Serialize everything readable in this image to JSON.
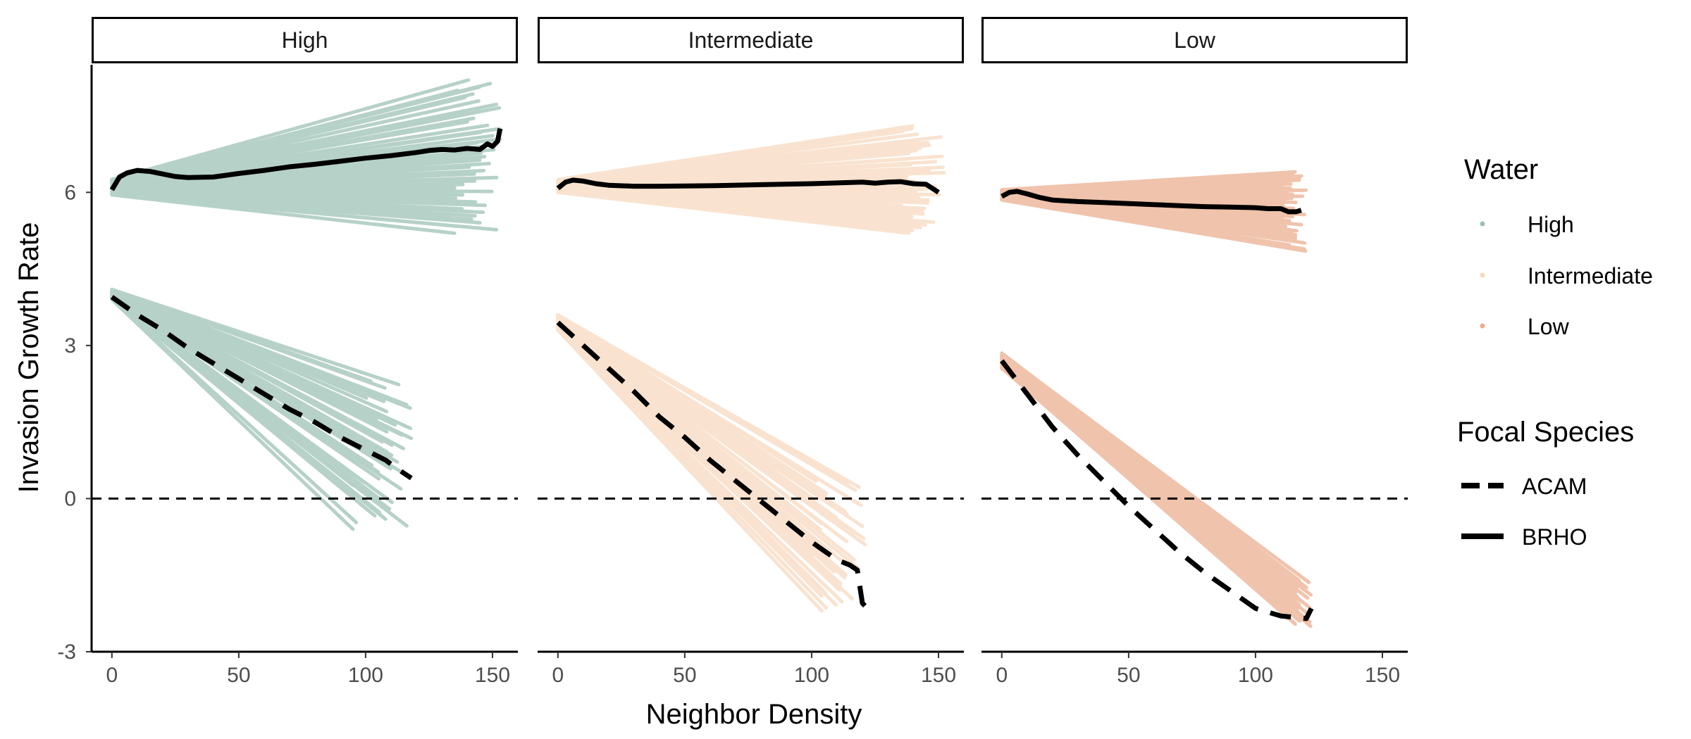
{
  "chart_data": {
    "type": "line",
    "xlabel": "Neighbor Density",
    "ylabel": "Invasion Growth Rate",
    "xlim": [
      -8,
      160
    ],
    "ylim": [
      -3,
      8.5
    ],
    "x_ticks": [
      0,
      50,
      100,
      150
    ],
    "y_ticks": [
      -3,
      0,
      3,
      6
    ],
    "reference_line": {
      "y": 0,
      "style": "dashed"
    },
    "colors": {
      "High": "#6fa593",
      "Intermediate": "#f4c9a3",
      "Low": "#e2895c",
      "line": "#000000"
    },
    "legend": {
      "placement": "right",
      "water": {
        "title": "Water",
        "items": [
          "High",
          "Intermediate",
          "Low"
        ]
      },
      "species": {
        "title": "Focal Species",
        "items": [
          {
            "label": "ACAM",
            "style": "dashed"
          },
          {
            "label": "BRHO",
            "style": "solid"
          }
        ]
      }
    },
    "panels": [
      {
        "label": "High",
        "water": "High",
        "bands": [
          {
            "species": "BRHO",
            "start_x": 0,
            "start_y_min": 5.95,
            "start_y_max": 6.25,
            "end_x_min": 135,
            "end_x_max": 153,
            "end_y_min": 5.2,
            "end_y_max": 8.2,
            "n_lines": 45
          },
          {
            "species": "ACAM",
            "start_x": 0,
            "start_y_min": 3.9,
            "start_y_max": 4.1,
            "end_x_min": 95,
            "end_x_max": 118,
            "end_y_min": -0.6,
            "end_y_max": 2.3,
            "n_lines": 45
          }
        ],
        "series": [
          {
            "name": "BRHO",
            "style": "solid",
            "x": [
              0,
              3,
              6,
              10,
              15,
              20,
              25,
              30,
              40,
              50,
              60,
              70,
              80,
              90,
              100,
              110,
              120,
              125,
              130,
              135,
              140,
              145,
              148,
              150,
              152,
              153
            ],
            "y": [
              6.05,
              6.3,
              6.38,
              6.43,
              6.41,
              6.36,
              6.31,
              6.29,
              6.3,
              6.37,
              6.43,
              6.5,
              6.55,
              6.61,
              6.67,
              6.72,
              6.78,
              6.82,
              6.84,
              6.83,
              6.86,
              6.84,
              6.95,
              6.9,
              7.0,
              7.25
            ]
          },
          {
            "name": "ACAM",
            "style": "dashed",
            "x": [
              0,
              10,
              20,
              30,
              40,
              50,
              60,
              70,
              80,
              90,
              100,
              108,
              112,
              118
            ],
            "y": [
              3.95,
              3.6,
              3.3,
              2.95,
              2.65,
              2.35,
              2.05,
              1.75,
              1.5,
              1.2,
              0.95,
              0.75,
              0.6,
              0.4
            ]
          }
        ]
      },
      {
        "label": "Intermediate",
        "water": "Intermediate",
        "bands": [
          {
            "species": "BRHO",
            "start_x": 0,
            "start_y_min": 6.0,
            "start_y_max": 6.25,
            "end_x_min": 135,
            "end_x_max": 153,
            "end_y_min": 5.2,
            "end_y_max": 7.3,
            "n_lines": 40
          },
          {
            "species": "ACAM",
            "start_x": 0,
            "start_y_min": 3.3,
            "start_y_max": 3.6,
            "end_x_min": 100,
            "end_x_max": 122,
            "end_y_min": -2.2,
            "end_y_max": 0.4,
            "n_lines": 45
          }
        ],
        "series": [
          {
            "name": "BRHO",
            "style": "solid",
            "x": [
              0,
              3,
              6,
              10,
              15,
              20,
              30,
              40,
              60,
              80,
              100,
              120,
              125,
              130,
              135,
              140,
              145,
              150
            ],
            "y": [
              6.08,
              6.2,
              6.24,
              6.22,
              6.17,
              6.14,
              6.12,
              6.12,
              6.13,
              6.15,
              6.17,
              6.2,
              6.18,
              6.2,
              6.21,
              6.17,
              6.16,
              6.0
            ]
          },
          {
            "name": "ACAM",
            "style": "dashed",
            "x": [
              0,
              10,
              20,
              30,
              40,
              50,
              60,
              70,
              80,
              90,
              100,
              110,
              115,
              118,
              120,
              122
            ],
            "y": [
              3.45,
              3.0,
              2.55,
              2.1,
              1.6,
              1.2,
              0.75,
              0.35,
              -0.05,
              -0.45,
              -0.85,
              -1.2,
              -1.3,
              -1.4,
              -2.05,
              -2.15
            ]
          }
        ]
      },
      {
        "label": "Low",
        "water": "Low",
        "bands": [
          {
            "species": "BRHO",
            "start_x": 0,
            "start_y_min": 5.85,
            "start_y_max": 6.05,
            "end_x_min": 110,
            "end_x_max": 120,
            "end_y_min": 4.85,
            "end_y_max": 6.4,
            "n_lines": 40
          },
          {
            "species": "ACAM",
            "start_x": 0,
            "start_y_min": 2.55,
            "start_y_max": 2.85,
            "end_x_min": 112,
            "end_x_max": 122,
            "end_y_min": -2.5,
            "end_y_max": -1.6,
            "n_lines": 45
          }
        ],
        "series": [
          {
            "name": "BRHO",
            "style": "solid",
            "x": [
              0,
              3,
              6,
              10,
              15,
              20,
              30,
              40,
              50,
              60,
              70,
              80,
              90,
              100,
              105,
              110,
              113,
              116,
              118
            ],
            "y": [
              5.92,
              6.0,
              6.02,
              5.97,
              5.9,
              5.85,
              5.82,
              5.8,
              5.78,
              5.76,
              5.74,
              5.72,
              5.71,
              5.7,
              5.68,
              5.68,
              5.62,
              5.62,
              5.65
            ]
          },
          {
            "name": "ACAM",
            "style": "dashed",
            "x": [
              0,
              10,
              20,
              30,
              40,
              50,
              60,
              70,
              80,
              90,
              100,
              110,
              120,
              122
            ],
            "y": [
              2.7,
              2.05,
              1.4,
              0.85,
              0.35,
              -0.15,
              -0.6,
              -1.05,
              -1.45,
              -1.8,
              -2.15,
              -2.3,
              -2.35,
              -2.15
            ]
          }
        ]
      }
    ]
  }
}
